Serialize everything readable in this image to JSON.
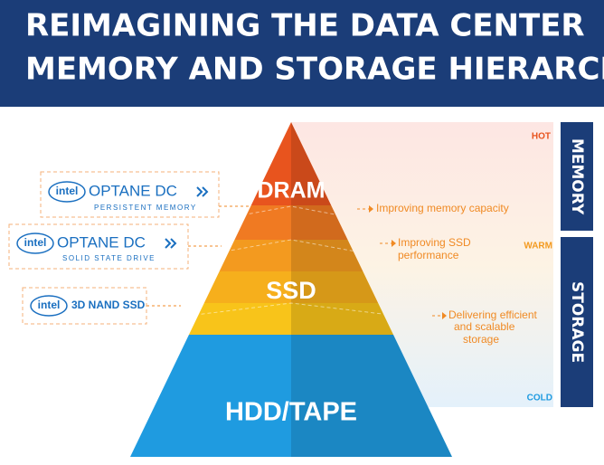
{
  "header": {
    "title_lines": [
      "REIMAGINING THE DATA CENTER",
      "MEMORY AND STORAGE HIERARCHY"
    ]
  },
  "pyramid": {
    "tiers": [
      {
        "label": "DRAM"
      },
      {
        "label": "SSD"
      },
      {
        "label": "HDD/TAPE"
      }
    ]
  },
  "annotations": [
    {
      "lines": [
        "Improving memory capacity"
      ]
    },
    {
      "lines": [
        "Improving SSD",
        "performance"
      ]
    },
    {
      "lines": [
        "Delivering efficient",
        "and scalable",
        "storage"
      ]
    }
  ],
  "temperature": {
    "hot": "HOT",
    "warm": "WARM",
    "cold": "COLD"
  },
  "side_labels": {
    "memory": "MEMORY",
    "storage": "STORAGE"
  },
  "products": [
    {
      "brand": "intel",
      "name": "OPTANE DC",
      "subtitle": "PERSISTENT MEMORY"
    },
    {
      "brand": "intel",
      "name": "OPTANE DC",
      "subtitle": "SOLID STATE DRIVE"
    },
    {
      "brand": "intel",
      "name": "3D NAND SSD"
    }
  ]
}
